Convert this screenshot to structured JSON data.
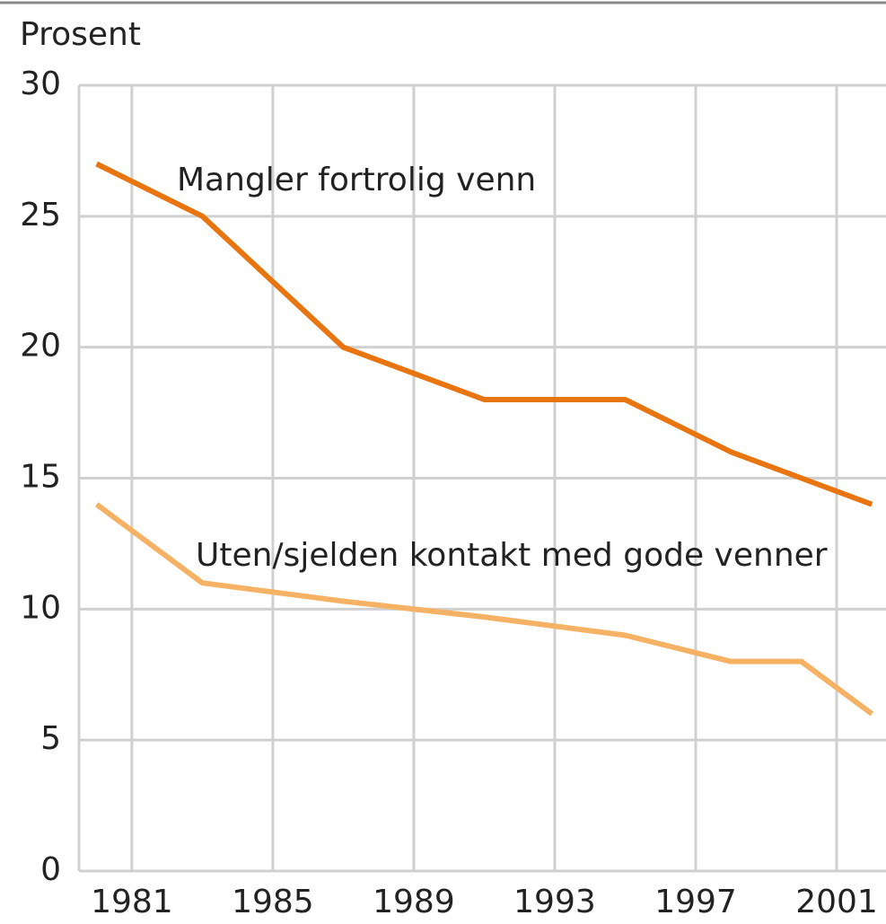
{
  "chart_data": {
    "type": "line",
    "y_label": "Prosent",
    "annotations": [
      "Mangler fortrolig venn",
      "Uten/sjelden kontakt med gode venner"
    ],
    "x": [
      1980,
      1983,
      1987,
      1991,
      1995,
      1998,
      2000,
      2002
    ],
    "series": [
      {
        "name": "Mangler fortrolig venn",
        "color": "#e8750f",
        "values": [
          27,
          25,
          20,
          18,
          18,
          16,
          15,
          14
        ]
      },
      {
        "name": "Uten/sjelden kontakt med gode venner",
        "color": "#f5b264",
        "values": [
          14,
          11,
          10.3,
          9.7,
          9,
          8,
          8,
          6
        ]
      }
    ],
    "xlim": [
      1979.5,
      2002.4
    ],
    "xticks": [
      1981,
      1985,
      1989,
      1993,
      1997,
      2001
    ],
    "ylim": [
      0,
      30
    ],
    "yticks": [
      0,
      5,
      10,
      15,
      20,
      25,
      30
    ],
    "grid": true
  }
}
